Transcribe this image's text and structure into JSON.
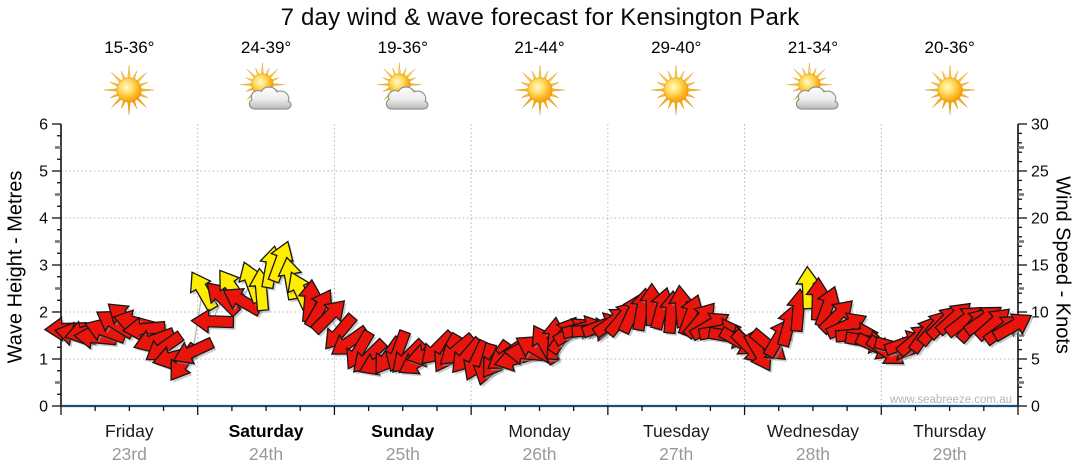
{
  "title": "7 day wind & wave forecast for Kensington Park",
  "watermark": "www.seabreeze.com.au",
  "axes": {
    "left": {
      "label": "Wave Height - Metres",
      "ticks": [
        "0",
        "1",
        "2",
        "3",
        "4",
        "5",
        "6"
      ],
      "range": [
        0,
        6
      ]
    },
    "right": {
      "label": "Wind Speed - Knots",
      "ticks": [
        "0",
        "5",
        "10",
        "15",
        "20",
        "25",
        "30"
      ],
      "range": [
        0,
        30
      ]
    }
  },
  "days": [
    {
      "name": "Friday",
      "date": "23rd",
      "temp": "15-36°",
      "icon": "sunny",
      "weekend": false
    },
    {
      "name": "Saturday",
      "date": "24th",
      "temp": "24-39°",
      "icon": "partly-cloudy",
      "weekend": true
    },
    {
      "name": "Sunday",
      "date": "25th",
      "temp": "19-36°",
      "icon": "partly-cloudy",
      "weekend": true
    },
    {
      "name": "Monday",
      "date": "26th",
      "temp": "21-44°",
      "icon": "sunny",
      "weekend": false
    },
    {
      "name": "Tuesday",
      "date": "27th",
      "temp": "29-40°",
      "icon": "sunny",
      "weekend": false
    },
    {
      "name": "Wednesday",
      "date": "28th",
      "temp": "21-34°",
      "icon": "partly-cloudy",
      "weekend": false
    },
    {
      "name": "Thursday",
      "date": "29th",
      "temp": "20-36°",
      "icon": "sunny",
      "weekend": false
    }
  ],
  "colors": {
    "arrow_low": "#e9150d",
    "arrow_high": "#ffed00",
    "arrow_outline": "#151515",
    "arrow_shadow": "#999999",
    "high_threshold_knots": 12,
    "axis_bottom": "#15507e",
    "grid": "#b5b5b5",
    "date_text": "#999999",
    "watermark_text": "#b5b5b5"
  },
  "chart_data": {
    "type": "scatter",
    "description": "Wind arrows: y-position = wind speed in knots (right axis, 0-30) on a scale shared with wave height in metres (left axis, 0-6); arrow rotation = wind direction; yellow arrows = 12+ knots, red = lighter.",
    "categories": [
      "Friday 23rd",
      "Saturday 24th",
      "Sunday 25th",
      "Monday 26th",
      "Tuesday 27th",
      "Wednesday 28th",
      "Thursday 29th"
    ],
    "samples_per_day": 14,
    "speed_knots": [
      8.2,
      7.6,
      7.9,
      7.3,
      8.0,
      8.8,
      9.4,
      8.9,
      8.2,
      7.0,
      6.2,
      5.2,
      4.6,
      5.8,
      12.3,
      9.0,
      11.5,
      12.6,
      11.2,
      13.2,
      12.4,
      14.8,
      15.4,
      13.6,
      12.2,
      11.2,
      10.4,
      9.6,
      7.8,
      6.8,
      5.9,
      5.2,
      4.6,
      5.3,
      5.8,
      5.2,
      4.7,
      5.5,
      6.1,
      5.6,
      5.9,
      5.3,
      4.8,
      4.4,
      4.9,
      5.3,
      5.0,
      5.6,
      6.1,
      6.6,
      7.2,
      7.6,
      8.0,
      8.3,
      8.1,
      8.6,
      9.0,
      9.4,
      9.9,
      10.3,
      10.8,
      10.4,
      10.0,
      10.6,
      9.7,
      9.2,
      8.6,
      8.0,
      7.4,
      6.8,
      6.2,
      5.7,
      6.4,
      7.3,
      8.6,
      10.2,
      12.6,
      11.4,
      10.6,
      9.6,
      8.6,
      7.6,
      6.9,
      6.3,
      5.8,
      6.2,
      6.7,
      7.1,
      7.7,
      8.4,
      9.0,
      9.4,
      9.1,
      8.7,
      9.2,
      8.8,
      8.2,
      8.5
    ],
    "direction_deg": [
      182,
      168,
      195,
      175,
      160,
      148,
      140,
      165,
      185,
      200,
      215,
      195,
      235,
      205,
      120,
      178,
      135,
      125,
      150,
      110,
      95,
      80,
      70,
      100,
      115,
      85,
      60,
      45,
      230,
      215,
      240,
      225,
      205,
      235,
      250,
      225,
      210,
      195,
      225,
      240,
      220,
      230,
      245,
      255,
      235,
      215,
      195,
      175,
      150,
      120,
      85,
      55,
      30,
      15,
      5,
      20,
      35,
      50,
      65,
      80,
      90,
      75,
      85,
      95,
      70,
      50,
      30,
      10,
      350,
      330,
      315,
      300,
      320,
      60,
      75,
      85,
      92,
      88,
      70,
      45,
      25,
      5,
      350,
      335,
      325,
      345,
      20,
      40,
      55,
      50,
      45,
      42,
      38,
      48,
      35,
      42,
      36,
      30
    ],
    "ylim_left_metres": [
      0,
      6
    ],
    "ylim_right_knots": [
      0,
      30
    ],
    "grid": "dotted",
    "legend": "none"
  }
}
